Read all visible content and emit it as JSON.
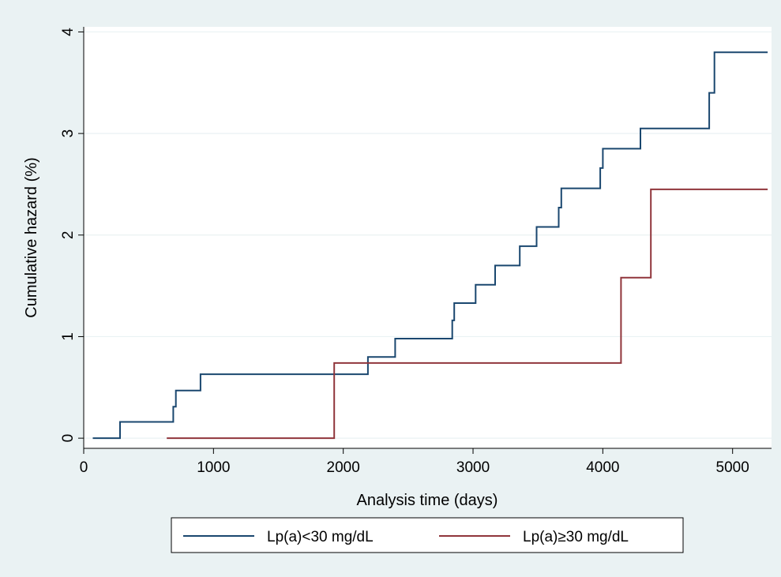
{
  "chart_data": {
    "type": "line",
    "step": true,
    "title": "",
    "xlabel": "Analysis time (days)",
    "ylabel": "Cumulative hazard (%)",
    "xlim": [
      0,
      5300
    ],
    "ylim": [
      -0.1,
      4.05
    ],
    "xticks": [
      0,
      1000,
      2000,
      3000,
      4000,
      5000
    ],
    "yticks": [
      0,
      1,
      2,
      3,
      4
    ],
    "grid": true,
    "legend_position": "bottom",
    "colors": {
      "plot_bg": "#ffffff",
      "outer_bg": "#eaf2f3",
      "grid": "#eaf2f3",
      "series_1": "#1a476f",
      "series_2": "#90353b"
    },
    "series": [
      {
        "name": "Lp(a)<30 mg/dL",
        "color": "#1a476f",
        "x": [
          70,
          280,
          690,
          710,
          900,
          2190,
          2400,
          2840,
          2855,
          3020,
          3170,
          3360,
          3490,
          3660,
          3680,
          3980,
          4000,
          4290,
          4820,
          4860,
          5270
        ],
        "y": [
          0.0,
          0.16,
          0.31,
          0.47,
          0.63,
          0.8,
          0.98,
          1.16,
          1.33,
          1.51,
          1.7,
          1.89,
          2.08,
          2.27,
          2.46,
          2.66,
          2.85,
          3.05,
          3.4,
          3.8,
          3.8
        ]
      },
      {
        "name": "Lp(a)≥30 mg/dL",
        "color": "#90353b",
        "x": [
          640,
          1930,
          4140,
          4370,
          5270
        ],
        "y": [
          0.0,
          0.74,
          1.58,
          2.45,
          2.45
        ]
      }
    ]
  }
}
